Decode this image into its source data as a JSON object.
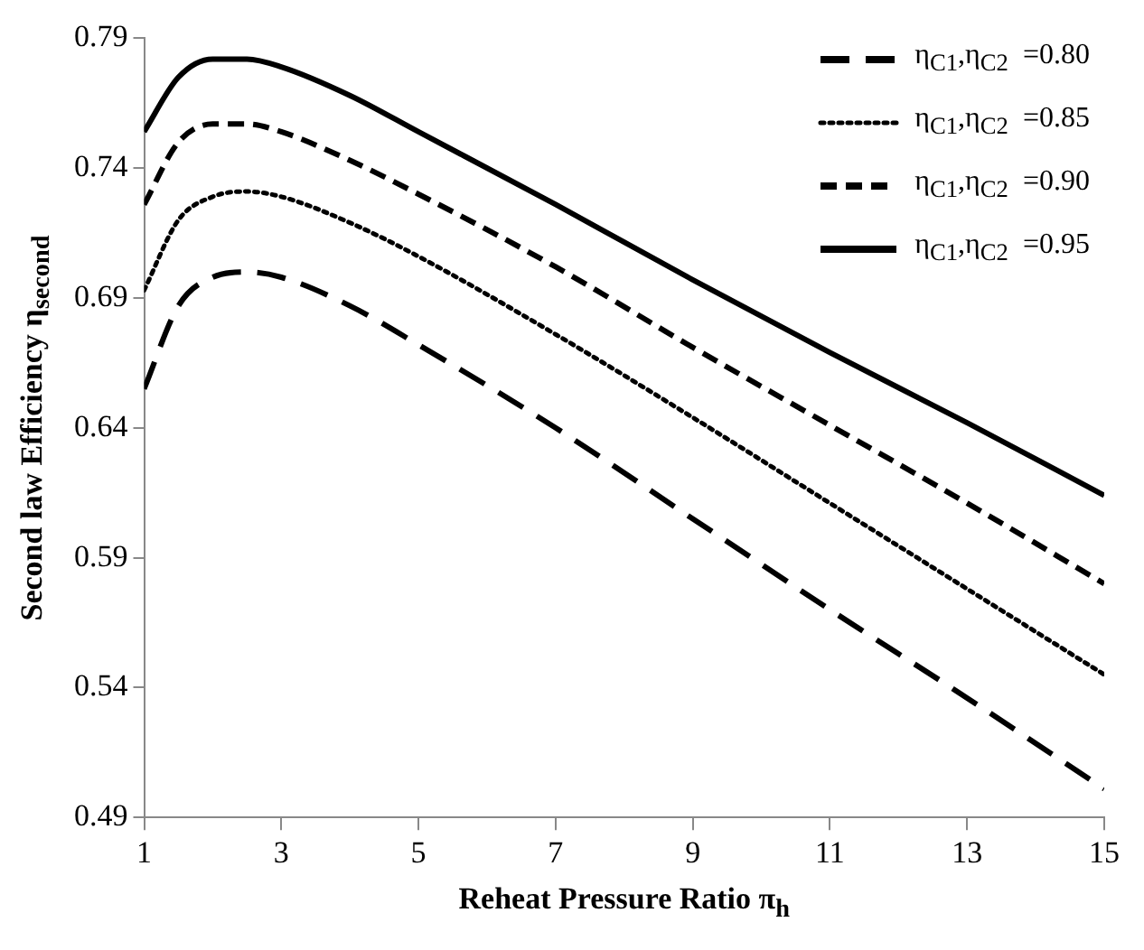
{
  "chart_data": {
    "type": "line",
    "xlabel": "Reheat Pressure Ratio  π$_{h}$",
    "ylabel": "Second law  Efficiency  η$_{second}$",
    "x": [
      1,
      1.5,
      2,
      2.5,
      3,
      4,
      5,
      7,
      9,
      11,
      13,
      15
    ],
    "series": [
      {
        "name": "η$_{C1}$,η$_{C2}$  =0.80",
        "color": "#000000",
        "line_style": "dashed",
        "values": [
          0.655,
          0.687,
          0.698,
          0.7,
          0.698,
          0.687,
          0.672,
          0.64,
          0.605,
          0.57,
          0.536,
          0.501
        ]
      },
      {
        "name": "η$_{C1}$,η$_{C2}$  =0.85",
        "color": "#000000",
        "line_style": "dotted",
        "values": [
          0.693,
          0.72,
          0.729,
          0.731,
          0.729,
          0.719,
          0.706,
          0.676,
          0.644,
          0.611,
          0.578,
          0.545
        ]
      },
      {
        "name": "η$_{C1}$,η$_{C2}$  =0.90",
        "color": "#000000",
        "line_style": "dashed",
        "values": [
          0.726,
          0.75,
          0.757,
          0.757,
          0.754,
          0.743,
          0.73,
          0.702,
          0.671,
          0.641,
          0.611,
          0.58
        ]
      },
      {
        "name": "η$_{C1}$,η$_{C2}$  =0.95",
        "color": "#000000",
        "line_style": "solid",
        "values": [
          0.754,
          0.775,
          0.782,
          0.782,
          0.779,
          0.768,
          0.754,
          0.726,
          0.697,
          0.669,
          0.642,
          0.614
        ]
      }
    ],
    "xlim": [
      1,
      15
    ],
    "xticks": [
      1,
      3,
      5,
      7,
      9,
      11,
      13,
      15
    ],
    "ylim": [
      0.49,
      0.79
    ],
    "yticks": [
      0.49,
      0.54,
      0.59,
      0.64,
      0.69,
      0.74,
      0.79
    ],
    "grid": false,
    "legend": "top right",
    "marker": "none"
  }
}
